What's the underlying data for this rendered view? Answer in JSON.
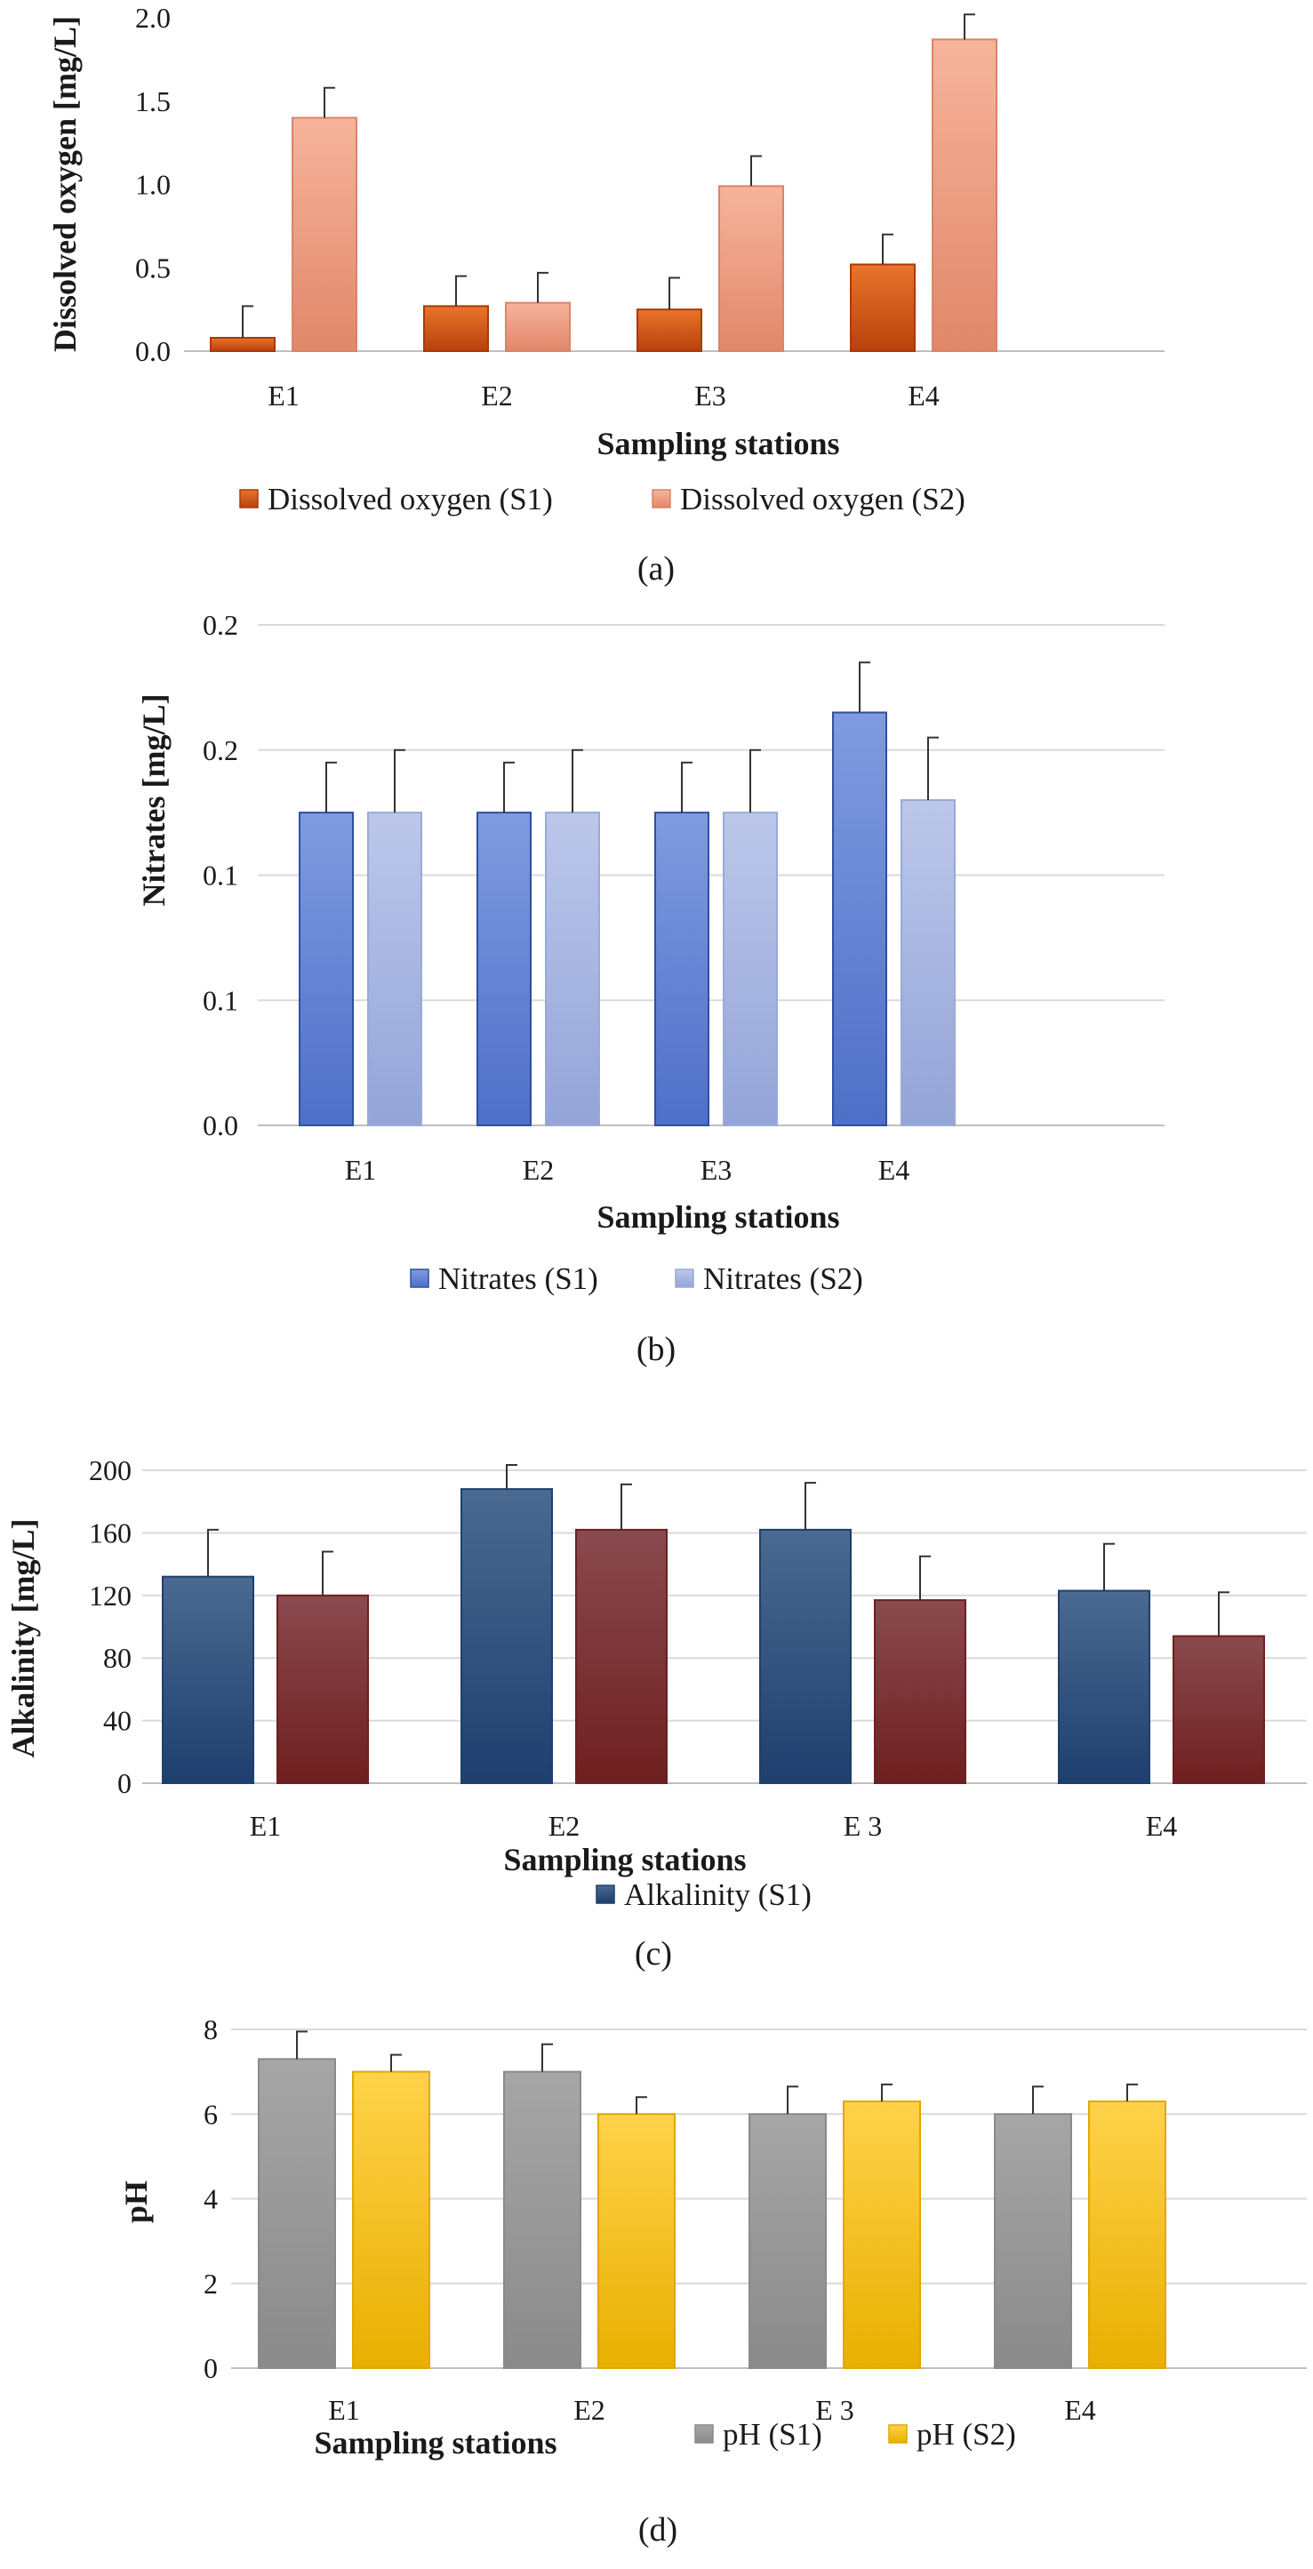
{
  "chart_data": [
    {
      "type": "bar",
      "panel": "(a)",
      "categories": [
        "E1",
        "E2",
        "E3",
        "E4"
      ],
      "series": [
        {
          "name": "Dissolved oxygen (S1)",
          "values": [
            0.08,
            0.27,
            0.25,
            0.52
          ],
          "errors": [
            0.19,
            0.18,
            0.19,
            0.18
          ],
          "color_top": "#e9742a",
          "color_bottom": "#b8410c",
          "stroke": "#a63b0c"
        },
        {
          "name": "Dissolved oxygen  (S2)",
          "values": [
            1.4,
            0.29,
            0.99,
            1.87
          ],
          "errors": [
            0.18,
            0.18,
            0.18,
            0.15
          ],
          "color_top": "#f6b49b",
          "color_bottom": "#e1876a",
          "stroke": "#d98468"
        }
      ],
      "ylabel": "Dissolved oxygen [mg/L]",
      "xlabel": "Sampling stations",
      "ylim": [
        0,
        2.0
      ],
      "yticks": [
        "0.0",
        "0.5",
        "1.0",
        "1.5",
        "2.0"
      ],
      "grid": false,
      "legend": "bottom"
    },
    {
      "type": "bar",
      "panel": "(b)",
      "categories": [
        "E1",
        "E2",
        "E3",
        "E4"
      ],
      "series": [
        {
          "name": "Nitrates (S1)",
          "values": [
            0.125,
            0.125,
            0.125,
            0.165
          ],
          "errors": [
            0.02,
            0.02,
            0.02,
            0.02
          ],
          "color_top": "#7f9be0",
          "color_bottom": "#4f6fc8",
          "stroke": "#2f4f9f"
        },
        {
          "name": "Nitrates (S2)",
          "values": [
            0.125,
            0.125,
            0.125,
            0.13
          ],
          "errors": [
            0.025,
            0.025,
            0.025,
            0.025
          ],
          "color_top": "#bcc7ea",
          "color_bottom": "#93a4d8",
          "stroke": "#9aaad6"
        }
      ],
      "ylabel": "Nitrates [mg/L]",
      "xlabel": "Sampling stations",
      "ylim": [
        0,
        0.2
      ],
      "yticks": [
        "0.0",
        "0.1",
        "0.1",
        "0.2",
        "0.2"
      ],
      "grid": true,
      "legend": "bottom"
    },
    {
      "type": "bar",
      "panel": "(c)",
      "categories": [
        "E1",
        "E2",
        "E 3",
        "E4"
      ],
      "series": [
        {
          "name": "Alkalinity (S1)",
          "values": [
            132,
            188,
            162,
            123
          ],
          "errors": [
            30,
            20,
            30,
            30
          ],
          "color_top": "#4a6a91",
          "color_bottom": "#1e3f6e",
          "stroke": "#1e3f6e"
        },
        {
          "name": "",
          "values": [
            120,
            162,
            117,
            94
          ],
          "errors": [
            28,
            29,
            28,
            28
          ],
          "color_top": "#8a4a4f",
          "color_bottom": "#6e1f1f",
          "stroke": "#6e1f1f"
        }
      ],
      "ylabel": "Alkalinity  [mg/L]",
      "xlabel": "Sampling stations",
      "ylim": [
        0,
        200
      ],
      "yticks": [
        "0",
        "40",
        "80",
        "120",
        "160",
        "200"
      ],
      "grid": true,
      "legend": "bottom"
    },
    {
      "type": "bar",
      "panel": "(d)",
      "categories": [
        "E1",
        "E2",
        "E 3",
        "E4"
      ],
      "series": [
        {
          "name": "pH (S1)",
          "values": [
            7.3,
            7.0,
            6.0,
            6.0
          ],
          "errors": [
            0.65,
            0.65,
            0.65,
            0.65
          ],
          "color_top": "#a6a6a6",
          "color_bottom": "#8a8a8a",
          "stroke": "#8a8a8a"
        },
        {
          "name": "pH (S2)",
          "values": [
            7.0,
            6.0,
            6.3,
            6.3
          ],
          "errors": [
            0.4,
            0.4,
            0.4,
            0.4
          ],
          "color_top": "#ffd24a",
          "color_bottom": "#e8b000",
          "stroke": "#e0a800"
        }
      ],
      "ylabel": "pH",
      "xlabel": "Sampling stations",
      "ylim": [
        0,
        8
      ],
      "yticks": [
        "0",
        "2",
        "4",
        "6",
        "8"
      ],
      "grid": true,
      "legend": "bottom-right"
    }
  ]
}
